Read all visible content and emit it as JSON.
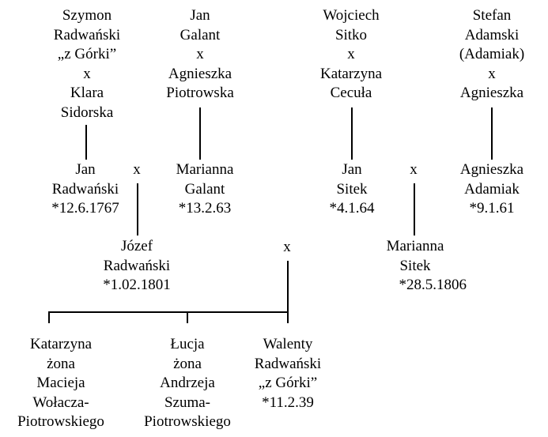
{
  "marriage_symbol": "x",
  "people": {
    "szymon_klara": [
      "Szymon",
      "Radwański",
      "„z Górki”",
      "x",
      "Klara",
      "Sidorska"
    ],
    "jan_galant_agnieszka": [
      "Jan",
      "Galant",
      "x",
      "Agnieszka",
      "Piotrowska"
    ],
    "wojciech_katarzyna": [
      "Wojciech",
      "Sitko",
      "x",
      "Katarzyna",
      "Cecuła"
    ],
    "stefan_agnieszka": [
      "Stefan",
      "Adamski",
      "(Adamiak)",
      "x",
      "Agnieszka"
    ],
    "jan_radwanski": [
      "Jan",
      "Radwański",
      "*12.6.1767"
    ],
    "marianna_galant": [
      "Marianna",
      "Galant",
      "*13.2.63"
    ],
    "jan_sitek": [
      "Jan",
      "Sitek",
      "*4.1.64"
    ],
    "agnieszka_adamiak": [
      "Agnieszka",
      "Adamiak",
      "*9.1.61"
    ],
    "jozef_radwanski": [
      "Józef",
      "Radwański",
      "*1.02.1801"
    ],
    "marianna_sitek": [
      "Marianna",
      "Sitek",
      "*28.5.1806"
    ],
    "katarzyna": [
      "Katarzyna",
      "żona",
      "Macieja",
      "Wołacza-",
      "Piotrowskiego"
    ],
    "lucja": [
      "Łucja",
      "żona",
      "Andrzeja",
      "Szuma-",
      "Piotrowskiego"
    ],
    "walenty": [
      "Walenty",
      "Radwański",
      "„z Górki”",
      "*11.2.39"
    ]
  }
}
